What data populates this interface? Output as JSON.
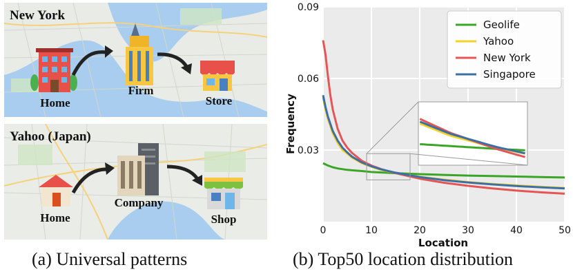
{
  "panel_a": {
    "caption": "(a) Universal patterns",
    "top_map": {
      "title": "New York",
      "labels": {
        "home": "Home",
        "firm": "Firm",
        "store": "Store"
      },
      "icons": [
        "house-icon",
        "office-building-icon",
        "store-icon"
      ]
    },
    "bottom_map": {
      "title": "Yahoo (Japan)",
      "labels": {
        "home": "Home",
        "company": "Company",
        "shop": "Shop"
      },
      "icons": [
        "house-icon",
        "office-building-icon",
        "shop-icon"
      ]
    }
  },
  "panel_b": {
    "caption": "(b) Top50 location distribution"
  },
  "chart_data": {
    "type": "line",
    "xlabel": "Location",
    "ylabel": "Frequency",
    "xlim": [
      0,
      50
    ],
    "ylim": [
      0.0,
      0.09
    ],
    "xticks": [
      "0",
      "10",
      "20",
      "30",
      "40",
      "50"
    ],
    "yticks": [
      "0.03",
      "0.06",
      "0.09"
    ],
    "grid": true,
    "legend_position": "top-right",
    "inset_zoom": true,
    "series": [
      {
        "name": "Geolife",
        "color": "#3aa527",
        "x": [
          0,
          1,
          2,
          3,
          5,
          8,
          10,
          15,
          20,
          25,
          30,
          35,
          40,
          45,
          50
        ],
        "y": [
          0.0245,
          0.0235,
          0.0228,
          0.0223,
          0.0217,
          0.0212,
          0.0208,
          0.0203,
          0.0199,
          0.0196,
          0.0193,
          0.0191,
          0.0189,
          0.0187,
          0.0185
        ]
      },
      {
        "name": "Yahoo",
        "color": "#f2d32b",
        "x": [
          0,
          0.5,
          1,
          2,
          3,
          4,
          5,
          6,
          8,
          10,
          12,
          15,
          20,
          25,
          30,
          35,
          40,
          45,
          50
        ],
        "y": [
          0.052,
          0.047,
          0.043,
          0.037,
          0.033,
          0.03,
          0.0285,
          0.0268,
          0.0245,
          0.023,
          0.0217,
          0.0204,
          0.0188,
          0.0176,
          0.0166,
          0.0158,
          0.0152,
          0.0146,
          0.0141
        ]
      },
      {
        "name": "New York",
        "color": "#e45656",
        "x": [
          0,
          0.5,
          1,
          1.5,
          2,
          3,
          4,
          5,
          6,
          8,
          10,
          12,
          15,
          20,
          25,
          30,
          35,
          40,
          45,
          50
        ],
        "y": [
          0.076,
          0.07,
          0.061,
          0.053,
          0.047,
          0.039,
          0.034,
          0.031,
          0.0288,
          0.0255,
          0.0235,
          0.022,
          0.0203,
          0.018,
          0.0163,
          0.015,
          0.0139,
          0.013,
          0.0123,
          0.0117
        ]
      },
      {
        "name": "Singapore",
        "color": "#3d6fa3",
        "x": [
          0,
          0.5,
          1,
          2,
          3,
          4,
          5,
          6,
          8,
          10,
          12,
          15,
          20,
          25,
          30,
          35,
          40,
          45,
          50
        ],
        "y": [
          0.053,
          0.048,
          0.044,
          0.038,
          0.034,
          0.031,
          0.029,
          0.0272,
          0.0248,
          0.0232,
          0.0219,
          0.0205,
          0.0187,
          0.0174,
          0.0164,
          0.0156,
          0.0149,
          0.0144,
          0.0139
        ]
      }
    ]
  }
}
